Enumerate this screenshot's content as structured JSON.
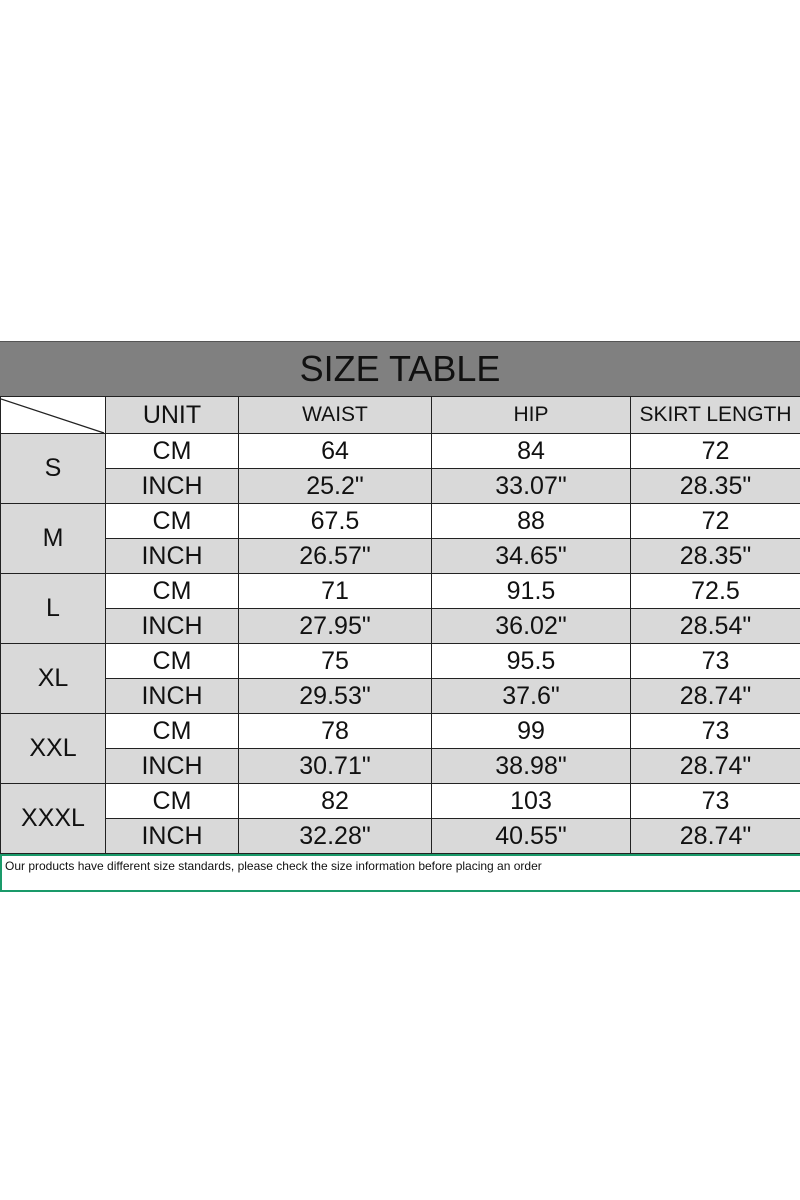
{
  "title": "SIZE TABLE",
  "headers": {
    "unit": "UNIT",
    "waist": "WAIST",
    "hip": "HIP",
    "skirt_length": "SKIRT LENGTH"
  },
  "rows": [
    {
      "size": "S",
      "cm": {
        "unit": "CM",
        "waist": "64",
        "hip": "84",
        "length": "72"
      },
      "inch": {
        "unit": "INCH",
        "waist": "25.2\"",
        "hip": "33.07\"",
        "length": "28.35\""
      }
    },
    {
      "size": "M",
      "cm": {
        "unit": "CM",
        "waist": "67.5",
        "hip": "88",
        "length": "72"
      },
      "inch": {
        "unit": "INCH",
        "waist": "26.57\"",
        "hip": "34.65\"",
        "length": "28.35\""
      }
    },
    {
      "size": "L",
      "cm": {
        "unit": "CM",
        "waist": "71",
        "hip": "91.5",
        "length": "72.5"
      },
      "inch": {
        "unit": "INCH",
        "waist": "27.95\"",
        "hip": "36.02\"",
        "length": "28.54\""
      }
    },
    {
      "size": "XL",
      "cm": {
        "unit": "CM",
        "waist": "75",
        "hip": "95.5",
        "length": "73"
      },
      "inch": {
        "unit": "INCH",
        "waist": "29.53\"",
        "hip": "37.6\"",
        "length": "28.74\""
      }
    },
    {
      "size": "XXL",
      "cm": {
        "unit": "CM",
        "waist": "78",
        "hip": "99",
        "length": "73"
      },
      "inch": {
        "unit": "INCH",
        "waist": "30.71\"",
        "hip": "38.98\"",
        "length": "28.74\""
      }
    },
    {
      "size": "XXXL",
      "cm": {
        "unit": "CM",
        "waist": "82",
        "hip": "103",
        "length": "73"
      },
      "inch": {
        "unit": "INCH",
        "waist": "32.28\"",
        "hip": "40.55\"",
        "length": "28.74\""
      }
    }
  ],
  "note": "Our products have different size standards, please check the size information before placing an order"
}
